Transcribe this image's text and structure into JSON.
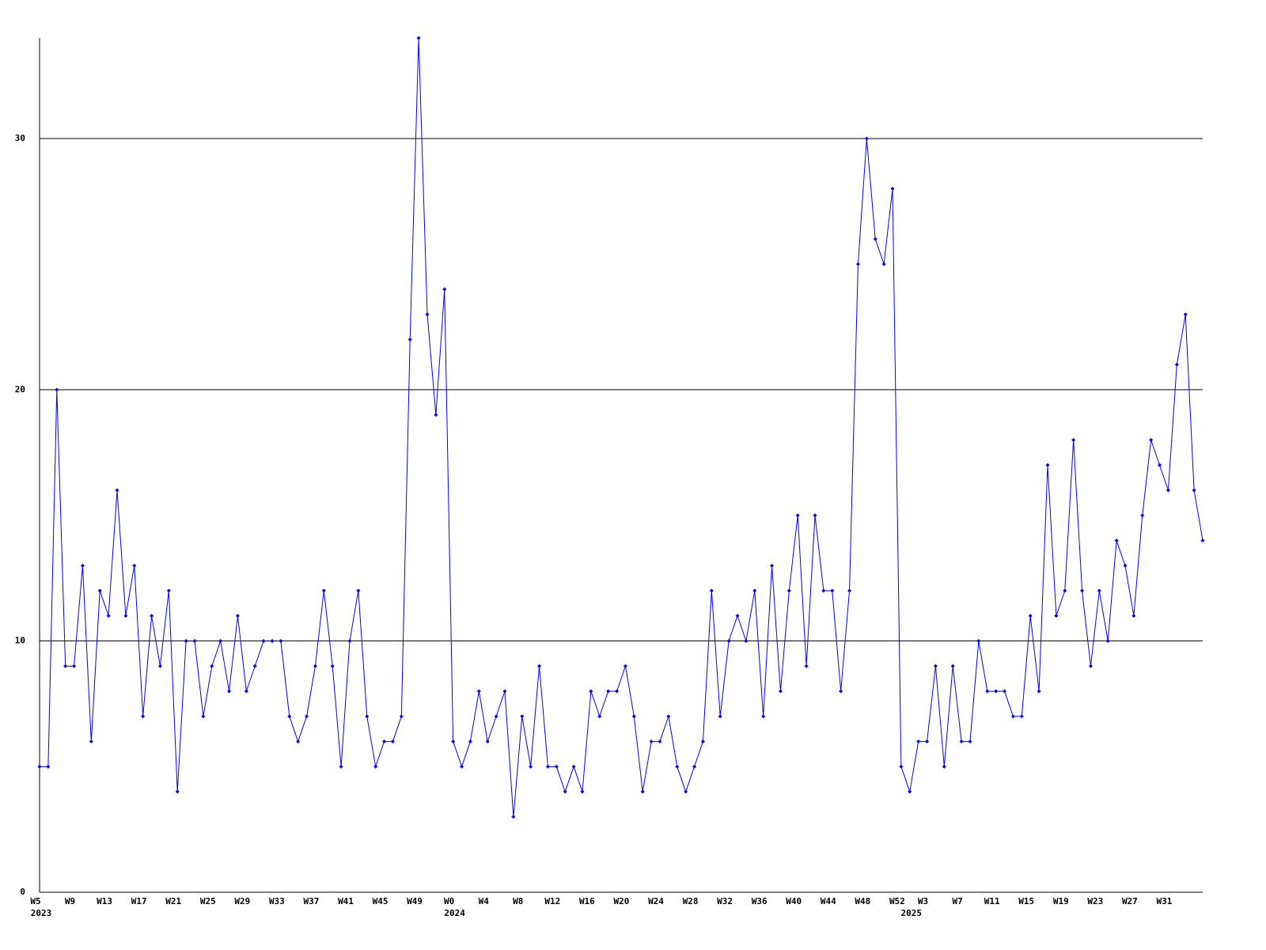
{
  "chart_data": {
    "type": "line",
    "categories": [
      "W5",
      null,
      null,
      null,
      "W9",
      null,
      null,
      null,
      "W13",
      null,
      null,
      null,
      "W17",
      null,
      null,
      null,
      "W21",
      null,
      null,
      null,
      "W25",
      null,
      null,
      null,
      "W29",
      null,
      null,
      null,
      "W33",
      null,
      null,
      null,
      "W37",
      null,
      null,
      null,
      "W41",
      null,
      null,
      null,
      "W45",
      null,
      null,
      null,
      "W49",
      null,
      null,
      null,
      "W0",
      null,
      null,
      null,
      "W4",
      null,
      null,
      null,
      "W8",
      null,
      null,
      null,
      "W12",
      null,
      null,
      null,
      "W16",
      null,
      null,
      null,
      "W20",
      null,
      null,
      null,
      "W24",
      null,
      null,
      null,
      "W28",
      null,
      null,
      null,
      "W32",
      null,
      null,
      null,
      "W36",
      null,
      null,
      null,
      "W40",
      null,
      null,
      null,
      "W44",
      null,
      null,
      null,
      "W48",
      null,
      null,
      null,
      "W52",
      null,
      null,
      "W3",
      null,
      null,
      null,
      "W7",
      null,
      null,
      null,
      "W11",
      null,
      null,
      null,
      "W15",
      null,
      null,
      null,
      "W19",
      null,
      null,
      null,
      "W23",
      null,
      null,
      null,
      "W27",
      null,
      null,
      null,
      "W31",
      null,
      null,
      null,
      null
    ],
    "category_years": [
      "2023",
      null,
      null,
      null,
      null,
      null,
      null,
      null,
      null,
      null,
      null,
      null,
      null,
      null,
      null,
      null,
      null,
      null,
      null,
      null,
      null,
      null,
      null,
      null,
      null,
      null,
      null,
      null,
      null,
      null,
      null,
      null,
      null,
      null,
      null,
      null,
      null,
      null,
      null,
      null,
      null,
      null,
      null,
      null,
      null,
      null,
      null,
      null,
      "2024",
      null,
      null,
      null,
      null,
      null,
      null,
      null,
      null,
      null,
      null,
      null,
      null,
      null,
      null,
      null,
      null,
      null,
      null,
      null,
      null,
      null,
      null,
      null,
      null,
      null,
      null,
      null,
      null,
      null,
      null,
      null,
      null,
      null,
      null,
      null,
      null,
      null,
      null,
      null,
      null,
      null,
      null,
      null,
      null,
      null,
      null,
      null,
      null,
      null,
      null,
      null,
      null,
      "2025",
      null,
      null,
      null,
      null,
      null,
      null,
      null,
      null,
      null,
      null,
      null,
      null,
      null,
      null,
      null,
      null,
      null,
      null,
      null,
      null,
      null,
      null,
      null,
      null,
      null,
      null,
      null,
      null,
      null,
      null,
      null,
      null,
      null,
      null
    ],
    "values": [
      5,
      5,
      20,
      9,
      9,
      13,
      6,
      12,
      11,
      16,
      11,
      13,
      7,
      11,
      9,
      12,
      4,
      10,
      10,
      7,
      9,
      10,
      8,
      11,
      8,
      9,
      10,
      10,
      10,
      7,
      6,
      7,
      9,
      12,
      9,
      5,
      10,
      12,
      7,
      5,
      6,
      6,
      7,
      22,
      34,
      23,
      19,
      24,
      6,
      5,
      6,
      8,
      6,
      7,
      8,
      3,
      7,
      5,
      9,
      5,
      5,
      4,
      5,
      4,
      8,
      7,
      8,
      8,
      9,
      7,
      4,
      6,
      6,
      7,
      5,
      4,
      5,
      6,
      12,
      7,
      10,
      11,
      10,
      12,
      7,
      13,
      8,
      12,
      15,
      9,
      15,
      12,
      12,
      8,
      12,
      25,
      30,
      26,
      25,
      28,
      5,
      4,
      6,
      6,
      9,
      5,
      9,
      6,
      6,
      10,
      8,
      8,
      8,
      7,
      7,
      11,
      8,
      17,
      11,
      12,
      18,
      12,
      9,
      12,
      10,
      14,
      13,
      11,
      15,
      18,
      17,
      16,
      21,
      23,
      16,
      14
    ],
    "color": "#0000ff",
    "ylim": [
      0,
      34
    ],
    "yticks": [
      0,
      10,
      20,
      30
    ],
    "grid": true
  }
}
